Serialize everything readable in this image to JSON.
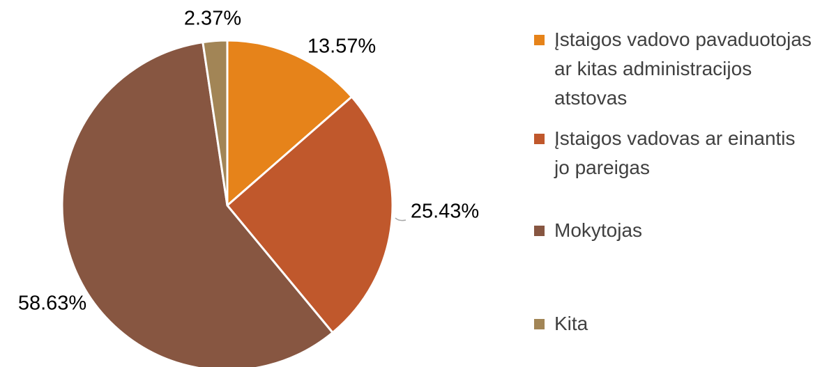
{
  "chart_data": {
    "type": "pie",
    "categories": [
      "Įstaigos vadovo pavaduotojas ar kitas administracijos atstovas",
      "Įstaigos vadovas ar einantis jo pareigas",
      "Mokytojas",
      "Kita"
    ],
    "values": [
      13.57,
      25.43,
      58.63,
      2.37
    ],
    "value_labels": [
      "13.57%",
      "25.43%",
      "58.63%",
      "2.37%"
    ],
    "colors": [
      "#e6831a",
      "#c0582c",
      "#875641",
      "#a28556"
    ],
    "legend": "right"
  }
}
